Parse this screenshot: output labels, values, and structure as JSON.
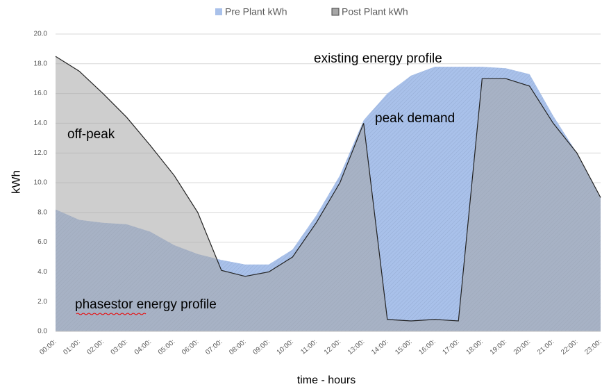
{
  "chart_data": {
    "type": "area",
    "x_label": "time - hours",
    "y_label": "kWh",
    "categories": [
      "00:00:",
      "01:00:",
      "02:00:",
      "03:00:",
      "04:00:",
      "05:00:",
      "06:00:",
      "07:00:",
      "08:00:",
      "09:00:",
      "10:00:",
      "11:00:",
      "12:00:",
      "13:00:",
      "14:00:",
      "15:00:",
      "16:00:",
      "17:00:",
      "18:00:",
      "19:00:",
      "20:00:",
      "21:00:",
      "22:00:",
      "23:00:"
    ],
    "series": [
      {
        "name": "Pre Plant kWh",
        "color": "#a9c1ea",
        "values": [
          8.2,
          7.5,
          7.3,
          7.2,
          6.7,
          5.8,
          5.2,
          4.8,
          4.5,
          4.5,
          5.5,
          7.8,
          10.5,
          14.2,
          16.0,
          17.2,
          17.8,
          17.8,
          17.8,
          17.7,
          17.3,
          14.5,
          12.0,
          9.0
        ]
      },
      {
        "name": "Post Plant kWh",
        "color": "#a6a6a6",
        "values": [
          18.5,
          17.5,
          16.0,
          14.4,
          12.5,
          10.5,
          8.0,
          4.1,
          3.7,
          4.0,
          5.0,
          7.3,
          10.0,
          14.0,
          0.8,
          0.7,
          0.8,
          0.7,
          17.0,
          17.0,
          16.5,
          14.0,
          12.0,
          9.0
        ]
      }
    ],
    "ylim": [
      0,
      20
    ],
    "yticks": [
      {
        "value": 0,
        "label": "0.0"
      },
      {
        "value": 2,
        "label": "2.0"
      },
      {
        "value": 4,
        "label": "4.0"
      },
      {
        "value": 6,
        "label": "6.0"
      },
      {
        "value": 8,
        "label": "8.0"
      },
      {
        "value": 10,
        "label": "10.0"
      },
      {
        "value": 12,
        "label": "12.0"
      },
      {
        "value": 14,
        "label": "14.0"
      },
      {
        "value": 16,
        "label": "16.0"
      },
      {
        "value": 18,
        "label": "18.0"
      },
      {
        "value": 20,
        "label": "20.0"
      }
    ],
    "grid": true,
    "legend": "top",
    "annotations": [
      "existing energy profile",
      "peak demand",
      "off-peak",
      "phasestor energy profile"
    ]
  }
}
